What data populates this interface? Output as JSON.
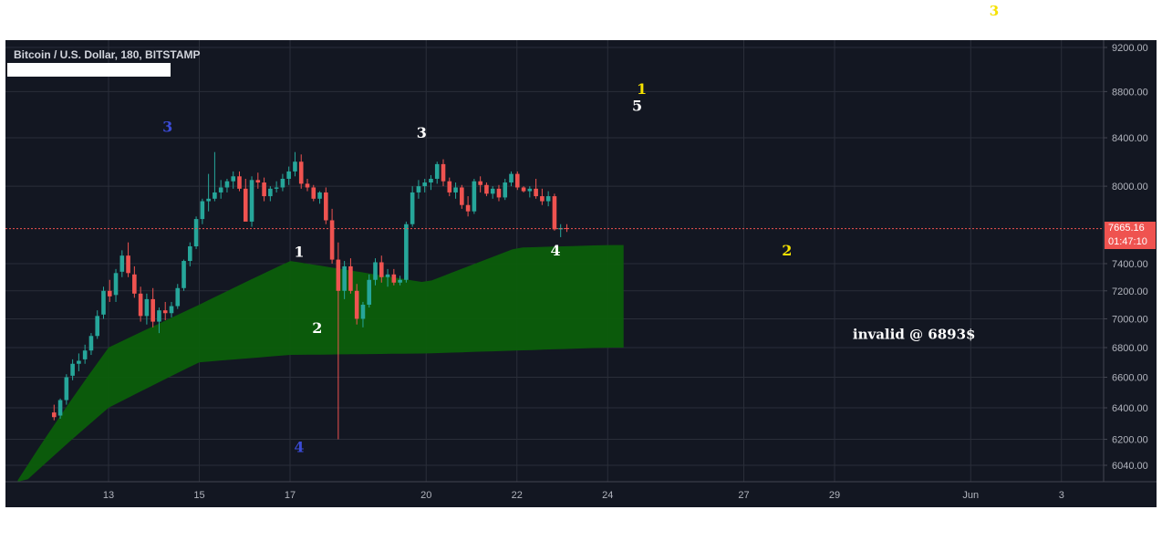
{
  "header": {
    "symbol_title": "Bitcoin / U.S. Dollar, 180, BITSTAMP"
  },
  "price_tags": {
    "last_price": "7665.16",
    "countdown": "01:47:10"
  },
  "colors": {
    "background": "#131722",
    "up_candle": "#26a69a",
    "down_candle": "#ef5350",
    "cloud": "#0b5e0b",
    "grid": "#2a2e39",
    "axis_text": "#b2b5be",
    "last_price_line": "#ef5350"
  },
  "chart_data": {
    "type": "candlestick",
    "title": "Bitcoin / U.S. Dollar, 180, BITSTAMP",
    "x_ticks": [
      "13",
      "15",
      "17",
      "20",
      "22",
      "24",
      "27",
      "29",
      "Jun",
      "3"
    ],
    "y_ticks": [
      9200,
      8800,
      8400,
      8000,
      7400,
      7200,
      7000,
      6800,
      6600,
      6400,
      6200,
      6040
    ],
    "y_tick_labels": [
      "9200.00",
      "8800.00",
      "8400.00",
      "8000.00",
      "7400.00",
      "7200.00",
      "7000.00",
      "6800.00",
      "6600.00",
      "6400.00",
      "6200.00",
      "6040.00"
    ],
    "y_scale": "log",
    "ylim": [
      5950,
      9300
    ],
    "last_price": 7665.16,
    "grid": true,
    "candles_ohlc": [
      [
        6370,
        6420,
        6320,
        6340
      ],
      [
        6350,
        6460,
        6330,
        6450
      ],
      [
        6450,
        6620,
        6420,
        6600
      ],
      [
        6610,
        6720,
        6580,
        6690
      ],
      [
        6690,
        6760,
        6640,
        6710
      ],
      [
        6720,
        6820,
        6690,
        6780
      ],
      [
        6780,
        6900,
        6750,
        6880
      ],
      [
        6880,
        7060,
        6860,
        7020
      ],
      [
        7030,
        7230,
        7000,
        7200
      ],
      [
        7200,
        7280,
        7120,
        7160
      ],
      [
        7170,
        7360,
        7120,
        7330
      ],
      [
        7340,
        7500,
        7300,
        7460
      ],
      [
        7460,
        7560,
        7300,
        7330
      ],
      [
        7320,
        7380,
        7150,
        7180
      ],
      [
        7180,
        7230,
        6980,
        7020
      ],
      [
        7020,
        7180,
        6960,
        7140
      ],
      [
        7140,
        7220,
        6940,
        6980
      ],
      [
        6980,
        7080,
        6900,
        7060
      ],
      [
        7060,
        7120,
        6990,
        7040
      ],
      [
        7040,
        7120,
        7010,
        7090
      ],
      [
        7090,
        7250,
        7070,
        7220
      ],
      [
        7220,
        7430,
        7200,
        7420
      ],
      [
        7420,
        7560,
        7380,
        7530
      ],
      [
        7530,
        7760,
        7510,
        7740
      ],
      [
        7740,
        7900,
        7700,
        7880
      ],
      [
        7880,
        8100,
        7800,
        7900
      ],
      [
        7900,
        8280,
        7880,
        7950
      ],
      [
        7950,
        8050,
        7900,
        7990
      ],
      [
        7990,
        8060,
        7950,
        8040
      ],
      [
        8040,
        8120,
        7980,
        8080
      ],
      [
        8080,
        8120,
        7960,
        7980
      ],
      [
        7980,
        8060,
        7820,
        7720
      ],
      [
        7720,
        8080,
        7680,
        8050
      ],
      [
        8050,
        8110,
        7980,
        8030
      ],
      [
        8030,
        8070,
        7880,
        7920
      ],
      [
        7920,
        8000,
        7880,
        7980
      ],
      [
        7980,
        8040,
        7950,
        7990
      ],
      [
        7990,
        8100,
        7960,
        8060
      ],
      [
        8060,
        8160,
        8010,
        8120
      ],
      [
        8120,
        8280,
        8080,
        8200
      ],
      [
        8200,
        8260,
        7980,
        8020
      ],
      [
        8020,
        8060,
        7960,
        7990
      ],
      [
        7990,
        8010,
        7880,
        7900
      ],
      [
        7900,
        7960,
        7860,
        7950
      ],
      [
        7950,
        7990,
        7700,
        7730
      ],
      [
        7730,
        7820,
        7400,
        7430
      ],
      [
        7430,
        7560,
        6200,
        7200
      ],
      [
        7200,
        7420,
        7140,
        7380
      ],
      [
        7380,
        7440,
        7180,
        7200
      ],
      [
        7200,
        7250,
        6960,
        7000
      ],
      [
        7000,
        7120,
        6940,
        7100
      ],
      [
        7100,
        7320,
        7080,
        7280
      ],
      [
        7280,
        7440,
        7240,
        7410
      ],
      [
        7410,
        7460,
        7260,
        7300
      ],
      [
        7300,
        7360,
        7230,
        7320
      ],
      [
        7320,
        7360,
        7240,
        7260
      ],
      [
        7260,
        7310,
        7240,
        7280
      ],
      [
        7280,
        7720,
        7260,
        7700
      ],
      [
        7700,
        8000,
        7680,
        7950
      ],
      [
        7950,
        8050,
        7900,
        8000
      ],
      [
        8000,
        8060,
        7950,
        8030
      ],
      [
        8030,
        8090,
        7970,
        8060
      ],
      [
        8060,
        8200,
        8020,
        8180
      ],
      [
        8180,
        8220,
        8000,
        8040
      ],
      [
        8040,
        8070,
        7920,
        7950
      ],
      [
        7950,
        8030,
        7900,
        7990
      ],
      [
        7990,
        8010,
        7820,
        7850
      ],
      [
        7850,
        7920,
        7760,
        7800
      ],
      [
        7800,
        8060,
        7780,
        8040
      ],
      [
        8040,
        8080,
        7950,
        8010
      ],
      [
        8010,
        8030,
        7920,
        7940
      ],
      [
        7940,
        8000,
        7900,
        7980
      ],
      [
        7980,
        8010,
        7880,
        7910
      ],
      [
        7910,
        8060,
        7890,
        8030
      ],
      [
        8030,
        8120,
        8000,
        8100
      ],
      [
        8100,
        8120,
        7970,
        7990
      ],
      [
        7990,
        8000,
        7950,
        7960
      ],
      [
        7960,
        8000,
        7910,
        7980
      ],
      [
        7980,
        8060,
        7900,
        7920
      ],
      [
        7920,
        7980,
        7850,
        7880
      ],
      [
        7880,
        7960,
        7840,
        7920
      ],
      [
        7920,
        7940,
        7650,
        7660
      ],
      [
        7660,
        7700,
        7600,
        7670
      ],
      [
        7670,
        7700,
        7640,
        7665
      ]
    ],
    "ichimoku_cloud": [
      {
        "x": "13",
        "top": 6800,
        "bottom": 6400
      },
      {
        "x": "15",
        "top": 7100,
        "bottom": 6700
      },
      {
        "x": "17",
        "top": 7420,
        "bottom": 6750
      },
      {
        "x": "20",
        "top": 7260,
        "bottom": 6760
      },
      {
        "x": "22",
        "top": 7520,
        "bottom": 6780
      },
      {
        "x": "24",
        "top": 7540,
        "bottom": 6800
      }
    ],
    "annotations": [
      {
        "text": "3",
        "color": "#3b4bd6",
        "x_day": 14.3,
        "price": 8450
      },
      {
        "text": "1",
        "color": "#ffffff",
        "x_day": 17.2,
        "price": 7450
      },
      {
        "text": "2",
        "color": "#ffffff",
        "x_day": 17.6,
        "price": 6900
      },
      {
        "text": "4",
        "color": "#3b4bd6",
        "x_day": 17.2,
        "price": 6120
      },
      {
        "text": "3",
        "color": "#ffffff",
        "x_day": 19.9,
        "price": 8400
      },
      {
        "text": "4",
        "color": "#ffffff",
        "x_day": 22.85,
        "price": 7460
      },
      {
        "text": "1",
        "color": "#f5e100",
        "x_day": 24.75,
        "price": 8780
      },
      {
        "text": "5",
        "color": "#ffffff",
        "x_day": 24.65,
        "price": 8630
      },
      {
        "text": "2",
        "color": "#f5e100",
        "x_day": 27.95,
        "price": 7460
      },
      {
        "text": "invalid @ 6893$",
        "color": "#ffffff",
        "x_day": 29.4,
        "price": 6860
      }
    ],
    "outside_annotation": {
      "text": "3",
      "color": "#f5e100"
    }
  }
}
